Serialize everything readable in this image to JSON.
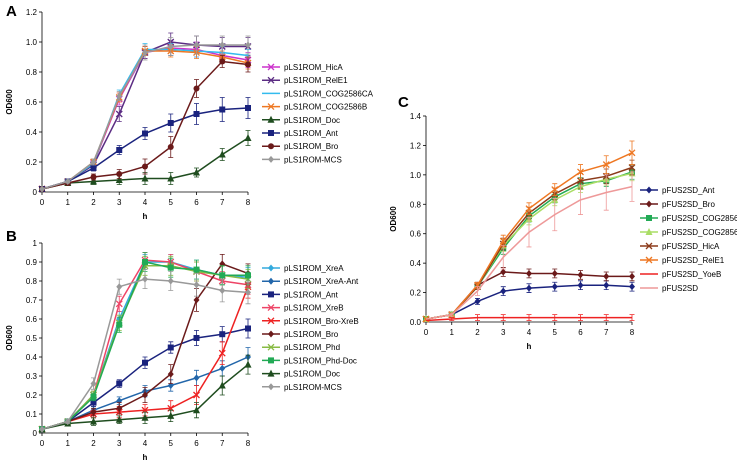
{
  "chart_data": [
    {
      "panel": "A",
      "type": "line",
      "xlabel": "h",
      "ylabel": "OD600",
      "x": [
        0,
        1,
        2,
        3,
        4,
        5,
        6,
        7,
        8
      ],
      "xlim": [
        0,
        8
      ],
      "ylim": [
        0,
        1.2
      ],
      "yticks": [
        "0",
        "0.2",
        "0.4",
        "0.6",
        "0.8",
        "1.0",
        "1.2"
      ],
      "legend_position": "right",
      "series": [
        {
          "name": "pLS1ROM_HicA",
          "color": "#cc33cc",
          "marker": "x",
          "values": [
            0.02,
            0.07,
            0.19,
            0.62,
            0.93,
            0.96,
            0.95,
            0.91,
            0.88
          ],
          "err": [
            0,
            0.01,
            0.02,
            0.04,
            0.04,
            0.05,
            0.05,
            0.05,
            0.05
          ]
        },
        {
          "name": "pLS1ROM_RelE1",
          "color": "#5b2c83",
          "marker": "x",
          "values": [
            0.02,
            0.07,
            0.18,
            0.52,
            0.93,
            1.0,
            0.98,
            0.97,
            0.97
          ],
          "err": [
            0,
            0.01,
            0.02,
            0.05,
            0.04,
            0.06,
            0.06,
            0.06,
            0.06
          ]
        },
        {
          "name": "pLS1ROM_COG2586CA",
          "color": "#33bbee",
          "marker": "none",
          "values": [
            0.02,
            0.07,
            0.19,
            0.65,
            0.95,
            0.95,
            0.94,
            0.93,
            0.91
          ],
          "err": [
            0,
            0.01,
            0.02,
            0.03,
            0.04,
            0.04,
            0.04,
            0.04,
            0.04
          ]
        },
        {
          "name": "pLS1ROM_COG2586B",
          "color": "#ee7722",
          "marker": "x",
          "values": [
            0.02,
            0.07,
            0.2,
            0.63,
            0.94,
            0.94,
            0.93,
            0.9,
            0.86
          ],
          "err": [
            0,
            0.01,
            0.02,
            0.03,
            0.03,
            0.04,
            0.04,
            0.04,
            0.04
          ]
        },
        {
          "name": "pLS1ROM_Doc",
          "color": "#1f4d1f",
          "marker": "triangle",
          "values": [
            0.02,
            0.06,
            0.07,
            0.08,
            0.09,
            0.09,
            0.13,
            0.25,
            0.36
          ],
          "err": [
            0,
            0.01,
            0.02,
            0.03,
            0.04,
            0.04,
            0.03,
            0.04,
            0.05
          ]
        },
        {
          "name": "pLS1ROM_Ant",
          "color": "#1a237e",
          "marker": "square",
          "values": [
            0.02,
            0.07,
            0.16,
            0.28,
            0.39,
            0.46,
            0.52,
            0.55,
            0.56
          ],
          "err": [
            0,
            0.01,
            0.02,
            0.03,
            0.04,
            0.06,
            0.07,
            0.08,
            0.07
          ]
        },
        {
          "name": "pLS1ROM_Bro",
          "color": "#6b1a1a",
          "marker": "circle",
          "values": [
            0.02,
            0.06,
            0.1,
            0.12,
            0.17,
            0.3,
            0.69,
            0.87,
            0.85
          ],
          "err": [
            0,
            0.01,
            0.02,
            0.03,
            0.05,
            0.07,
            0.06,
            0.04,
            0.05
          ]
        },
        {
          "name": "pLS1ROM-MCS",
          "color": "#999999",
          "marker": "diamond",
          "values": [
            0.02,
            0.07,
            0.2,
            0.64,
            0.93,
            0.97,
            0.98,
            0.98,
            0.98
          ],
          "err": [
            0,
            0.01,
            0.02,
            0.03,
            0.05,
            0.06,
            0.06,
            0.06,
            0.06
          ]
        }
      ]
    },
    {
      "panel": "B",
      "type": "line",
      "xlabel": "h",
      "ylabel": "OD600",
      "x": [
        0,
        1,
        2,
        3,
        4,
        5,
        6,
        7,
        8
      ],
      "xlim": [
        0,
        8
      ],
      "ylim": [
        0,
        1.0
      ],
      "yticks": [
        "0",
        "0.1",
        "0.2",
        "0.3",
        "0.4",
        "0.5",
        "0.6",
        "0.7",
        "0.8",
        "0.9",
        "1"
      ],
      "legend_position": "right",
      "series": [
        {
          "name": "pLS1ROM_XreA",
          "color": "#33aadd",
          "marker": "diamond",
          "values": [
            0.02,
            0.06,
            0.2,
            0.6,
            0.9,
            0.9,
            0.86,
            0.83,
            0.82
          ],
          "err": [
            0,
            0.01,
            0.02,
            0.04,
            0.04,
            0.04,
            0.05,
            0.05,
            0.05
          ]
        },
        {
          "name": "pLS1ROM_XreA-Ant",
          "color": "#2266aa",
          "marker": "diamond",
          "values": [
            0.02,
            0.06,
            0.12,
            0.17,
            0.22,
            0.25,
            0.29,
            0.34,
            0.4
          ],
          "err": [
            0,
            0.01,
            0.02,
            0.02,
            0.03,
            0.03,
            0.04,
            0.04,
            0.05
          ]
        },
        {
          "name": "pLS1ROM_Ant",
          "color": "#1a237e",
          "marker": "square",
          "values": [
            0.02,
            0.06,
            0.16,
            0.26,
            0.37,
            0.45,
            0.5,
            0.52,
            0.55
          ],
          "err": [
            0,
            0.01,
            0.02,
            0.02,
            0.03,
            0.03,
            0.04,
            0.04,
            0.05
          ]
        },
        {
          "name": "pLS1ROM_XreB",
          "color": "#ee4466",
          "marker": "x",
          "values": [
            0.02,
            0.06,
            0.2,
            0.68,
            0.91,
            0.9,
            0.85,
            0.8,
            0.78
          ],
          "err": [
            0,
            0.01,
            0.02,
            0.04,
            0.04,
            0.04,
            0.05,
            0.05,
            0.05
          ]
        },
        {
          "name": "pLS1ROM_Bro-XreB",
          "color": "#ee2222",
          "marker": "x",
          "values": [
            0.02,
            0.06,
            0.1,
            0.11,
            0.12,
            0.13,
            0.2,
            0.42,
            0.77
          ],
          "err": [
            0,
            0.01,
            0.02,
            0.03,
            0.03,
            0.04,
            0.05,
            0.06,
            0.06
          ]
        },
        {
          "name": "pLS1ROM_Bro",
          "color": "#6b1a1a",
          "marker": "diamond",
          "values": [
            0.02,
            0.06,
            0.11,
            0.13,
            0.2,
            0.31,
            0.7,
            0.89,
            0.84
          ],
          "err": [
            0,
            0.01,
            0.02,
            0.03,
            0.04,
            0.05,
            0.06,
            0.05,
            0.05
          ]
        },
        {
          "name": "pLS1ROM_Phd",
          "color": "#88bb44",
          "marker": "x",
          "values": [
            0.02,
            0.06,
            0.2,
            0.58,
            0.88,
            0.88,
            0.85,
            0.83,
            0.81
          ],
          "err": [
            0,
            0.01,
            0.02,
            0.04,
            0.05,
            0.05,
            0.05,
            0.05,
            0.05
          ]
        },
        {
          "name": "pLS1ROM_Phd-Doc",
          "color": "#22aa55",
          "marker": "square",
          "values": [
            0.02,
            0.06,
            0.19,
            0.57,
            0.9,
            0.87,
            0.86,
            0.83,
            0.83
          ],
          "err": [
            0,
            0.01,
            0.02,
            0.04,
            0.05,
            0.05,
            0.05,
            0.05,
            0.05
          ]
        },
        {
          "name": "pLS1ROM_Doc",
          "color": "#1f4d1f",
          "marker": "triangle",
          "values": [
            0.02,
            0.05,
            0.06,
            0.07,
            0.08,
            0.09,
            0.12,
            0.25,
            0.36
          ],
          "err": [
            0,
            0.01,
            0.02,
            0.02,
            0.03,
            0.03,
            0.04,
            0.05,
            0.05
          ]
        },
        {
          "name": "pLS1ROM-MCS",
          "color": "#999999",
          "marker": "diamond",
          "values": [
            0.02,
            0.06,
            0.26,
            0.77,
            0.81,
            0.8,
            0.78,
            0.75,
            0.74
          ],
          "err": [
            0,
            0.01,
            0.03,
            0.04,
            0.05,
            0.05,
            0.06,
            0.06,
            0.06
          ]
        }
      ]
    },
    {
      "panel": "C",
      "type": "line",
      "xlabel": "h",
      "ylabel": "OD600",
      "x": [
        0,
        1,
        2,
        3,
        4,
        5,
        6,
        7,
        8
      ],
      "xlim": [
        0,
        8
      ],
      "ylim": [
        0,
        1.4
      ],
      "yticks": [
        "0.0",
        "0.2",
        "0.4",
        "0.6",
        "0.8",
        "1.0",
        "1.2",
        "1.4"
      ],
      "legend_position": "right",
      "series": [
        {
          "name": "pFUS2SD_Ant",
          "color": "#1a237e",
          "marker": "diamond",
          "values": [
            0.02,
            0.05,
            0.14,
            0.21,
            0.23,
            0.24,
            0.25,
            0.25,
            0.24
          ],
          "err": [
            0,
            0.01,
            0.02,
            0.03,
            0.03,
            0.03,
            0.03,
            0.03,
            0.03
          ]
        },
        {
          "name": "pFUS2SD_Bro",
          "color": "#6b1a1a",
          "marker": "diamond",
          "values": [
            0.02,
            0.05,
            0.25,
            0.34,
            0.33,
            0.33,
            0.32,
            0.31,
            0.31
          ],
          "err": [
            0,
            0.01,
            0.02,
            0.03,
            0.03,
            0.03,
            0.03,
            0.03,
            0.03
          ]
        },
        {
          "name": "pFUS2SD_COG2856CA",
          "color": "#22aa55",
          "marker": "square",
          "values": [
            0.02,
            0.05,
            0.24,
            0.5,
            0.72,
            0.85,
            0.94,
            0.96,
            1.02
          ],
          "err": [
            0,
            0.01,
            0.02,
            0.04,
            0.04,
            0.04,
            0.04,
            0.04,
            0.05
          ]
        },
        {
          "name": "pFUS2SD_COG2856B",
          "color": "#aadd66",
          "marker": "triangle",
          "values": [
            0.02,
            0.05,
            0.24,
            0.52,
            0.7,
            0.83,
            0.92,
            0.97,
            1.01
          ],
          "err": [
            0,
            0.01,
            0.02,
            0.04,
            0.04,
            0.04,
            0.04,
            0.04,
            0.05
          ]
        },
        {
          "name": "pFUS2SD_HicA",
          "color": "#8b3a1a",
          "marker": "x",
          "values": [
            0.02,
            0.05,
            0.24,
            0.53,
            0.74,
            0.87,
            0.96,
            0.99,
            1.05
          ],
          "err": [
            0,
            0.01,
            0.02,
            0.04,
            0.04,
            0.04,
            0.05,
            0.05,
            0.05
          ]
        },
        {
          "name": "pFUS2SD_RelE1",
          "color": "#ee7722",
          "marker": "x",
          "values": [
            0.02,
            0.05,
            0.25,
            0.55,
            0.77,
            0.9,
            1.02,
            1.07,
            1.15
          ],
          "err": [
            0,
            0.01,
            0.02,
            0.04,
            0.04,
            0.04,
            0.05,
            0.06,
            0.08
          ]
        },
        {
          "name": "pFUS2SD_YoeB",
          "color": "#ee2222",
          "marker": "none",
          "values": [
            0.01,
            0.02,
            0.03,
            0.03,
            0.03,
            0.03,
            0.03,
            0.03,
            0.03
          ],
          "err": [
            0,
            0.01,
            0.02,
            0.02,
            0.02,
            0.02,
            0.02,
            0.02,
            0.02
          ]
        },
        {
          "name": "pFUS2SD",
          "color": "#ee9999",
          "marker": "none",
          "values": [
            0.02,
            0.05,
            0.21,
            0.44,
            0.61,
            0.73,
            0.83,
            0.88,
            0.92
          ],
          "err": [
            0,
            0.01,
            0.03,
            0.08,
            0.1,
            0.11,
            0.1,
            0.12,
            0.1
          ]
        }
      ]
    }
  ]
}
